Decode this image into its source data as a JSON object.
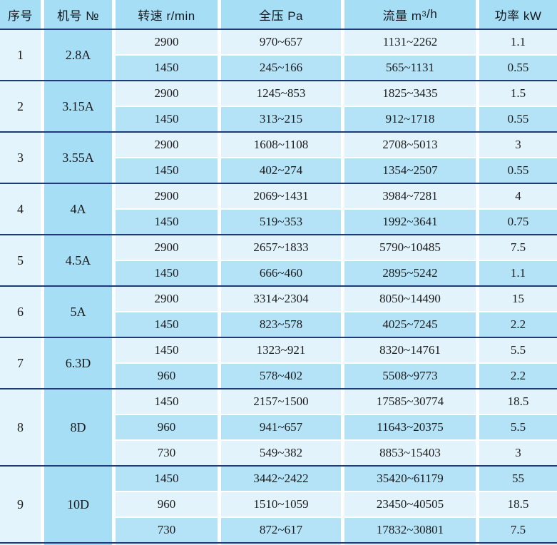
{
  "header": {
    "serial": "序号",
    "model": "机号 №",
    "speed": "转速 r/min",
    "pressure": "全压 Pa",
    "flow_prefix": "流量 m",
    "flow_sup": "3",
    "flow_suffix": "/h",
    "power": "功率 kW"
  },
  "colors": {
    "header_bg": "#a6def6",
    "model_col_bg": "#a6def6",
    "serial_col_bg": "#e4f4fc",
    "row_light_bg": "#e2f3fb",
    "row_blue_bg": "#b4e3f8",
    "group_separator": "#1f3b73",
    "gridline": "#ffffff",
    "text": "#1b1b1b"
  },
  "rows": [
    {
      "no": "1",
      "model": "2.8A",
      "entries": [
        {
          "speed": "2900",
          "pressure": "970~657",
          "flow": "1131~2262",
          "power": "1.1"
        },
        {
          "speed": "1450",
          "pressure": "245~166",
          "flow": "565~1131",
          "power": "0.55"
        }
      ]
    },
    {
      "no": "2",
      "model": "3.15A",
      "entries": [
        {
          "speed": "2900",
          "pressure": "1245~853",
          "flow": "1825~3435",
          "power": "1.5"
        },
        {
          "speed": "1450",
          "pressure": "313~215",
          "flow": "912~1718",
          "power": "0.55"
        }
      ]
    },
    {
      "no": "3",
      "model": "3.55A",
      "entries": [
        {
          "speed": "2900",
          "pressure": "1608~1108",
          "flow": "2708~5013",
          "power": "3"
        },
        {
          "speed": "1450",
          "pressure": "402~274",
          "flow": "1354~2507",
          "power": "0.55"
        }
      ]
    },
    {
      "no": "4",
      "model": "4A",
      "entries": [
        {
          "speed": "2900",
          "pressure": "2069~1431",
          "flow": "3984~7281",
          "power": "4"
        },
        {
          "speed": "1450",
          "pressure": "519~353",
          "flow": "1992~3641",
          "power": "0.75"
        }
      ]
    },
    {
      "no": "5",
      "model": "4.5A",
      "entries": [
        {
          "speed": "2900",
          "pressure": "2657~1833",
          "flow": "5790~10485",
          "power": "7.5"
        },
        {
          "speed": "1450",
          "pressure": "666~460",
          "flow": "2895~5242",
          "power": "1.1"
        }
      ]
    },
    {
      "no": "6",
      "model": "5A",
      "entries": [
        {
          "speed": "2900",
          "pressure": "3314~2304",
          "flow": "8050~14490",
          "power": "15"
        },
        {
          "speed": "1450",
          "pressure": "823~578",
          "flow": "4025~7245",
          "power": "2.2"
        }
      ]
    },
    {
      "no": "7",
      "model": "6.3D",
      "entries": [
        {
          "speed": "1450",
          "pressure": "1323~921",
          "flow": "8320~14761",
          "power": "5.5"
        },
        {
          "speed": "960",
          "pressure": "578~402",
          "flow": "5508~9773",
          "power": "2.2"
        }
      ]
    },
    {
      "no": "8",
      "model": "8D",
      "entries": [
        {
          "speed": "1450",
          "pressure": "2157~1500",
          "flow": "17585~30774",
          "power": "18.5"
        },
        {
          "speed": "960",
          "pressure": "941~657",
          "flow": "11643~20375",
          "power": "5.5"
        },
        {
          "speed": "730",
          "pressure": "549~382",
          "flow": "8853~15403",
          "power": "3"
        }
      ]
    },
    {
      "no": "9",
      "model": "10D",
      "entries": [
        {
          "speed": "1450",
          "pressure": "3442~2422",
          "flow": "35420~61179",
          "power": "55"
        },
        {
          "speed": "960",
          "pressure": "1510~1059",
          "flow": "23450~40505",
          "power": "18.5"
        },
        {
          "speed": "730",
          "pressure": "872~617",
          "flow": "17832~30801",
          "power": "7.5"
        }
      ]
    }
  ]
}
